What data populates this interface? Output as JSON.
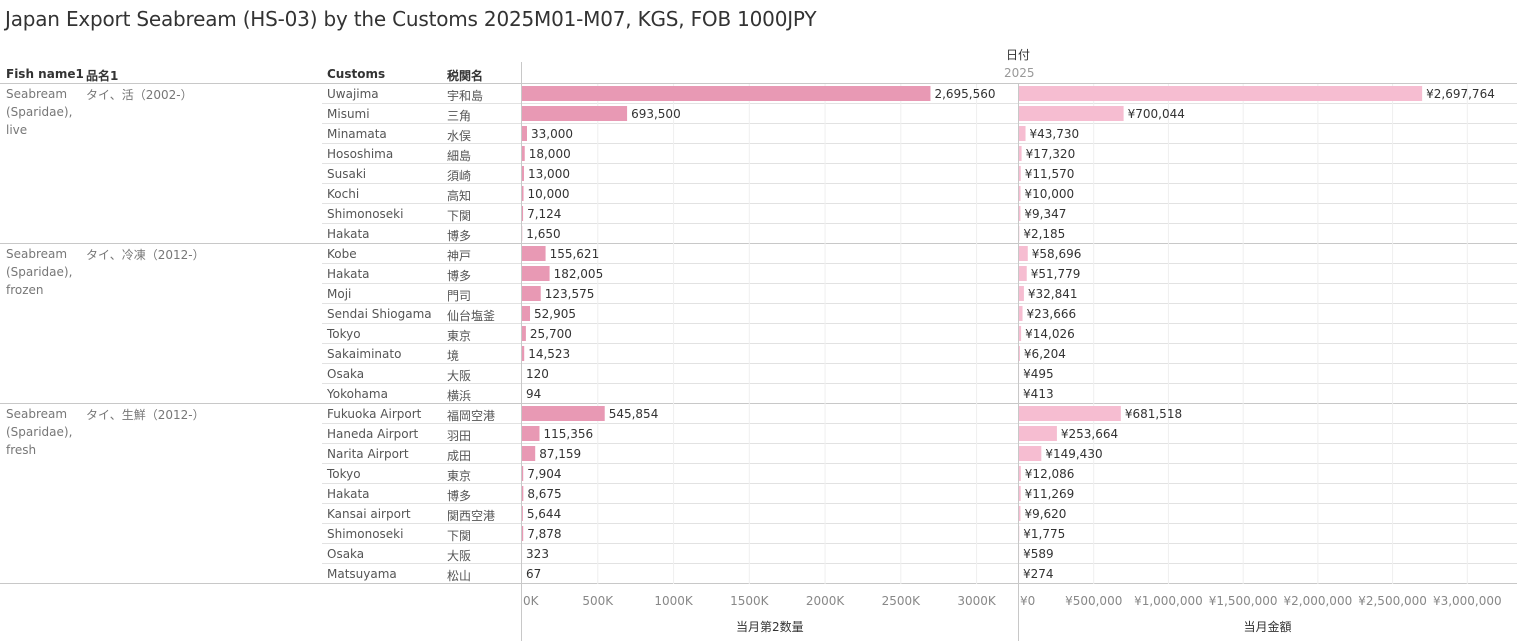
{
  "title": "Japan Export Seabream (HS-03) by the Customs 2025M01-M07, KGS, FOB 1000JPY",
  "headers": {
    "fish": "Fish name1",
    "hinmei": "品名1",
    "customs": "Customs",
    "zeikan": "税関名",
    "date": "日付",
    "year": "2025"
  },
  "colors": {
    "qty_bar": "#e899b4",
    "amt_bar": "#f6bdd1"
  },
  "chart_data": [
    {
      "type": "bar",
      "orientation": "horizontal",
      "xlabel": "当月第2数量",
      "xlim": [
        0,
        3200000
      ],
      "ticks": [
        0,
        500000,
        1000000,
        1500000,
        2000000,
        2500000,
        3000000
      ],
      "tick_labels": [
        "0K",
        "500K",
        "1000K",
        "1500K",
        "2000K",
        "2500K",
        "3000K"
      ],
      "values": [
        2695560,
        693500,
        33000,
        18000,
        13000,
        10000,
        7124,
        1650,
        155621,
        182005,
        123575,
        52905,
        25700,
        14523,
        120,
        94,
        545854,
        115356,
        87159,
        7904,
        8675,
        5644,
        7878,
        323,
        67
      ],
      "labels": [
        "2,695,560",
        "693,500",
        "33,000",
        "18,000",
        "13,000",
        "10,000",
        "7,124",
        "1,650",
        "155,621",
        "182,005",
        "123,575",
        "52,905",
        "25,700",
        "14,523",
        "120",
        "94",
        "545,854",
        "115,356",
        "87,159",
        "7,904",
        "8,675",
        "5,644",
        "7,878",
        "323",
        "67"
      ]
    },
    {
      "type": "bar",
      "orientation": "horizontal",
      "xlabel": "当月金額",
      "xlim": [
        0,
        3200000
      ],
      "ticks": [
        0,
        500000,
        1000000,
        1500000,
        2000000,
        2500000,
        3000000
      ],
      "tick_labels": [
        "¥0",
        "¥500,000",
        "¥1,000,000",
        "¥1,500,000",
        "¥2,000,000",
        "¥2,500,000",
        "¥3,000,000"
      ],
      "values": [
        2697764,
        700044,
        43730,
        17320,
        11570,
        10000,
        9347,
        2185,
        58696,
        51779,
        32841,
        23666,
        14026,
        6204,
        495,
        413,
        681518,
        253664,
        149430,
        12086,
        11269,
        9620,
        1775,
        589,
        274
      ],
      "labels": [
        "¥2,697,764",
        "¥700,044",
        "¥43,730",
        "¥17,320",
        "¥11,570",
        "¥10,000",
        "¥9,347",
        "¥2,185",
        "¥58,696",
        "¥51,779",
        "¥32,841",
        "¥23,666",
        "¥14,026",
        "¥6,204",
        "¥495",
        "¥413",
        "¥681,518",
        "¥253,664",
        "¥149,430",
        "¥12,086",
        "¥11,269",
        "¥9,620",
        "¥1,775",
        "¥589",
        "¥274"
      ]
    }
  ],
  "groups": [
    {
      "fish": "Seabream (Sparidae), live",
      "hinmei": "タイ、活（2002-）",
      "rows": [
        {
          "customs": "Uwajima",
          "zeikan": "宇和島"
        },
        {
          "customs": "Misumi",
          "zeikan": "三角"
        },
        {
          "customs": "Minamata",
          "zeikan": "水俣"
        },
        {
          "customs": "Hososhima",
          "zeikan": "細島"
        },
        {
          "customs": "Susaki",
          "zeikan": "須崎"
        },
        {
          "customs": "Kochi",
          "zeikan": "高知"
        },
        {
          "customs": "Shimonoseki",
          "zeikan": "下関"
        },
        {
          "customs": "Hakata",
          "zeikan": "博多"
        }
      ]
    },
    {
      "fish": "Seabream (Sparidae), frozen",
      "hinmei": "タイ、冷凍（2012-）",
      "rows": [
        {
          "customs": "Kobe",
          "zeikan": "神戸"
        },
        {
          "customs": "Hakata",
          "zeikan": "博多"
        },
        {
          "customs": "Moji",
          "zeikan": "門司"
        },
        {
          "customs": "Sendai Shiogama",
          "zeikan": "仙台塩釜"
        },
        {
          "customs": "Tokyo",
          "zeikan": "東京"
        },
        {
          "customs": "Sakaiminato",
          "zeikan": "境"
        },
        {
          "customs": "Osaka",
          "zeikan": "大阪"
        },
        {
          "customs": "Yokohama",
          "zeikan": "横浜"
        }
      ]
    },
    {
      "fish": "Seabream (Sparidae), fresh",
      "hinmei": "タイ、生鮮（2012-）",
      "rows": [
        {
          "customs": "Fukuoka Airport",
          "zeikan": "福岡空港"
        },
        {
          "customs": "Haneda Airport",
          "zeikan": "羽田"
        },
        {
          "customs": "Narita Airport",
          "zeikan": "成田"
        },
        {
          "customs": "Tokyo",
          "zeikan": "東京"
        },
        {
          "customs": "Hakata",
          "zeikan": "博多"
        },
        {
          "customs": "Kansai airport",
          "zeikan": "関西空港"
        },
        {
          "customs": "Shimonoseki",
          "zeikan": "下関"
        },
        {
          "customs": "Osaka",
          "zeikan": "大阪"
        },
        {
          "customs": "Matsuyama",
          "zeikan": "松山"
        }
      ]
    }
  ]
}
